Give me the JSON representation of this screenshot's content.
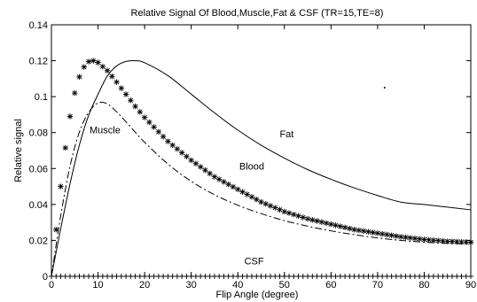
{
  "chart_data": {
    "type": "line",
    "title": "Relative Signal Of Blood,Muscle,Fat & CSF  (TR=15,TE=8)",
    "xlabel": "Flip Angle (degree)",
    "ylabel": "Relative signal",
    "xlim": [
      0,
      90
    ],
    "ylim": [
      0,
      0.14
    ],
    "xticks": [
      0,
      10,
      20,
      30,
      40,
      50,
      60,
      70,
      80,
      90
    ],
    "yticks": [
      0,
      0.02,
      0.04,
      0.06,
      0.08,
      0.1,
      0.12,
      0.14
    ],
    "xtick_labels": [
      "0",
      "10",
      "20",
      "30",
      "40",
      "50",
      "60",
      "70",
      "80",
      "90"
    ],
    "ytick_labels": [
      "0",
      "0.02",
      "0.04",
      "0.06",
      "0.08",
      "0.1",
      "0.12",
      "0.14"
    ],
    "grid": false,
    "legend": "none",
    "series": [
      {
        "name": "Fat",
        "style": "solid",
        "x": [
          0,
          2,
          4,
          6,
          8,
          10,
          12,
          14,
          16,
          18,
          20,
          25,
          30,
          35,
          40,
          45,
          50,
          55,
          60,
          65,
          70,
          75,
          80,
          85,
          90
        ],
        "y": [
          0,
          0.0266,
          0.0516,
          0.0731,
          0.0897,
          0.1013,
          0.1115,
          0.1171,
          0.1196,
          0.12,
          0.1189,
          0.1117,
          0.1014,
          0.091,
          0.0814,
          0.073,
          0.0658,
          0.0594,
          0.054,
          0.0492,
          0.045,
          0.0413,
          0.04,
          0.0385,
          0.037
        ]
      },
      {
        "name": "Muscle",
        "style": "dashdot",
        "x": [
          0,
          2,
          4,
          6,
          8,
          10,
          12,
          14,
          16,
          18,
          20,
          25,
          30,
          35,
          40,
          45,
          50,
          55,
          60,
          65,
          70,
          75,
          80,
          85,
          90
        ],
        "y": [
          0,
          0.0338,
          0.0614,
          0.0803,
          0.0913,
          0.0965,
          0.096,
          0.0915,
          0.086,
          0.0802,
          0.0746,
          0.0625,
          0.0529,
          0.0454,
          0.0396,
          0.0349,
          0.031,
          0.0279,
          0.0253,
          0.0232,
          0.0214,
          0.02,
          0.019,
          0.0183,
          0.018
        ]
      },
      {
        "name": "Blood",
        "style": "asterisk",
        "x": [
          0,
          1,
          2,
          3,
          4,
          5,
          6,
          7,
          8,
          9,
          10,
          12,
          14,
          16,
          18,
          20,
          25,
          30,
          35,
          40,
          45,
          50,
          55,
          60,
          65,
          70,
          75,
          80,
          85,
          90
        ],
        "y": [
          0,
          0.026,
          0.05,
          0.0715,
          0.089,
          0.102,
          0.111,
          0.1165,
          0.1195,
          0.12,
          0.119,
          0.1145,
          0.1081,
          0.1013,
          0.0946,
          0.0884,
          0.0751,
          0.0646,
          0.0554,
          0.0484,
          0.0414,
          0.036,
          0.032,
          0.029,
          0.026,
          0.024,
          0.022,
          0.0205,
          0.0195,
          0.019
        ]
      },
      {
        "name": "CSF",
        "style": "plus",
        "x": [
          0,
          90
        ],
        "y": [
          0,
          0
        ]
      }
    ],
    "series_labels": [
      {
        "text": "Fat",
        "x": 50.5,
        "y": 0.0775
      },
      {
        "text": "Blood",
        "x": 43.0,
        "y": 0.0595
      },
      {
        "text": "Muscle",
        "x": 11.5,
        "y": 0.0795
      },
      {
        "text": "CSF",
        "x": 43.5,
        "y": 0.0067
      }
    ]
  }
}
